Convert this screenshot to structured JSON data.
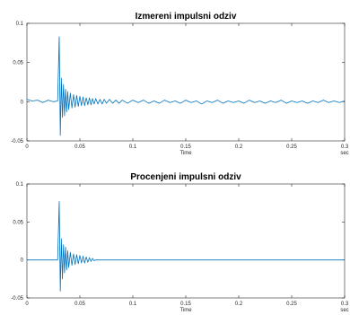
{
  "chart_data": [
    {
      "type": "line",
      "title": "Izmereni impulsni odziv",
      "xlabel": "Time",
      "x_unit": "sec",
      "xlim": [
        0,
        0.3
      ],
      "ylim": [
        -0.05,
        0.1
      ],
      "x_ticks": [
        "0",
        "0.05",
        "0.1",
        "0.15",
        "0.2",
        "0.25",
        "0.3"
      ],
      "y_ticks": [
        "-0.05",
        "0",
        "0.05",
        "0.1"
      ],
      "grid": false,
      "line_color": "#0072bd",
      "series": [
        {
          "x": [
            0,
            0.005,
            0.01,
            0.015,
            0.02,
            0.025,
            0.029,
            0.0305,
            0.0315,
            0.0325,
            0.0335,
            0.0345,
            0.0355,
            0.0365,
            0.0375,
            0.0385,
            0.0395,
            0.041,
            0.0425,
            0.044,
            0.0455,
            0.047,
            0.0485,
            0.05,
            0.0515,
            0.053,
            0.0545,
            0.056,
            0.0575,
            0.059,
            0.0605,
            0.062,
            0.0635,
            0.065,
            0.067,
            0.069,
            0.071,
            0.073,
            0.075,
            0.078,
            0.081,
            0.084,
            0.087,
            0.09,
            0.095,
            0.1,
            0.105,
            0.11,
            0.115,
            0.12,
            0.125,
            0.13,
            0.135,
            0.14,
            0.145,
            0.15,
            0.155,
            0.16,
            0.165,
            0.17,
            0.175,
            0.18,
            0.185,
            0.19,
            0.195,
            0.2,
            0.205,
            0.21,
            0.215,
            0.22,
            0.225,
            0.23,
            0.235,
            0.24,
            0.245,
            0.25,
            0.255,
            0.26,
            0.265,
            0.27,
            0.275,
            0.28,
            0.285,
            0.29,
            0.295,
            0.3
          ],
          "y": [
            0.003,
            0.001,
            0.002,
            -0.001,
            0.002,
            0.0,
            0.001,
            0.083,
            -0.043,
            0.03,
            -0.02,
            0.022,
            -0.018,
            0.016,
            -0.013,
            0.013,
            -0.01,
            0.011,
            -0.008,
            0.009,
            -0.007,
            0.008,
            -0.006,
            0.007,
            -0.005,
            0.006,
            -0.005,
            0.005,
            -0.004,
            0.005,
            -0.004,
            0.004,
            -0.003,
            0.004,
            -0.003,
            0.003,
            -0.003,
            0.003,
            -0.002,
            0.003,
            -0.002,
            0.002,
            -0.002,
            0.002,
            -0.002,
            0.002,
            -0.001,
            0.002,
            -0.002,
            0.001,
            -0.002,
            0.002,
            -0.001,
            0.001,
            -0.002,
            0.002,
            -0.001,
            0.001,
            -0.003,
            0.001,
            -0.001,
            0.002,
            -0.002,
            0.001,
            -0.001,
            0.001,
            -0.002,
            0.002,
            -0.001,
            0.001,
            -0.002,
            0.001,
            -0.001,
            0.002,
            -0.002,
            0.001,
            -0.001,
            0.001,
            -0.002,
            0.001,
            -0.001,
            0.002,
            -0.001,
            0.001,
            -0.001,
            0.001
          ]
        }
      ]
    },
    {
      "type": "line",
      "title": "Procenjeni impulsni odziv",
      "xlabel": "Time",
      "x_unit": "sec",
      "xlim": [
        0,
        0.3
      ],
      "ylim": [
        -0.05,
        0.1
      ],
      "x_ticks": [
        "0",
        "0.05",
        "0.1",
        "0.15",
        "0.2",
        "0.25",
        "0.3"
      ],
      "y_ticks": [
        "-0.05",
        "0",
        "0.05",
        "0.1"
      ],
      "grid": false,
      "line_color": "#0072bd",
      "series": [
        {
          "x": [
            0,
            0.01,
            0.02,
            0.028,
            0.029,
            0.0305,
            0.0315,
            0.0325,
            0.0335,
            0.0345,
            0.0355,
            0.0365,
            0.0375,
            0.0385,
            0.0395,
            0.041,
            0.0425,
            0.044,
            0.0455,
            0.047,
            0.0485,
            0.05,
            0.0515,
            0.053,
            0.0545,
            0.056,
            0.0575,
            0.059,
            0.0605,
            0.062,
            0.0635,
            0.065,
            0.07,
            0.1,
            0.15,
            0.2,
            0.25,
            0.3
          ],
          "y": [
            0.0,
            0.0,
            0.0,
            0.0,
            0.0,
            0.077,
            -0.041,
            0.028,
            -0.025,
            0.02,
            -0.017,
            0.017,
            -0.013,
            0.012,
            -0.01,
            0.01,
            -0.007,
            0.008,
            -0.006,
            0.007,
            -0.005,
            0.006,
            -0.004,
            0.005,
            -0.004,
            0.004,
            -0.003,
            0.003,
            -0.002,
            0.002,
            -0.001,
            0.0,
            0.0,
            0.0,
            0.0,
            0.0,
            0.0,
            0.0
          ]
        }
      ]
    }
  ]
}
